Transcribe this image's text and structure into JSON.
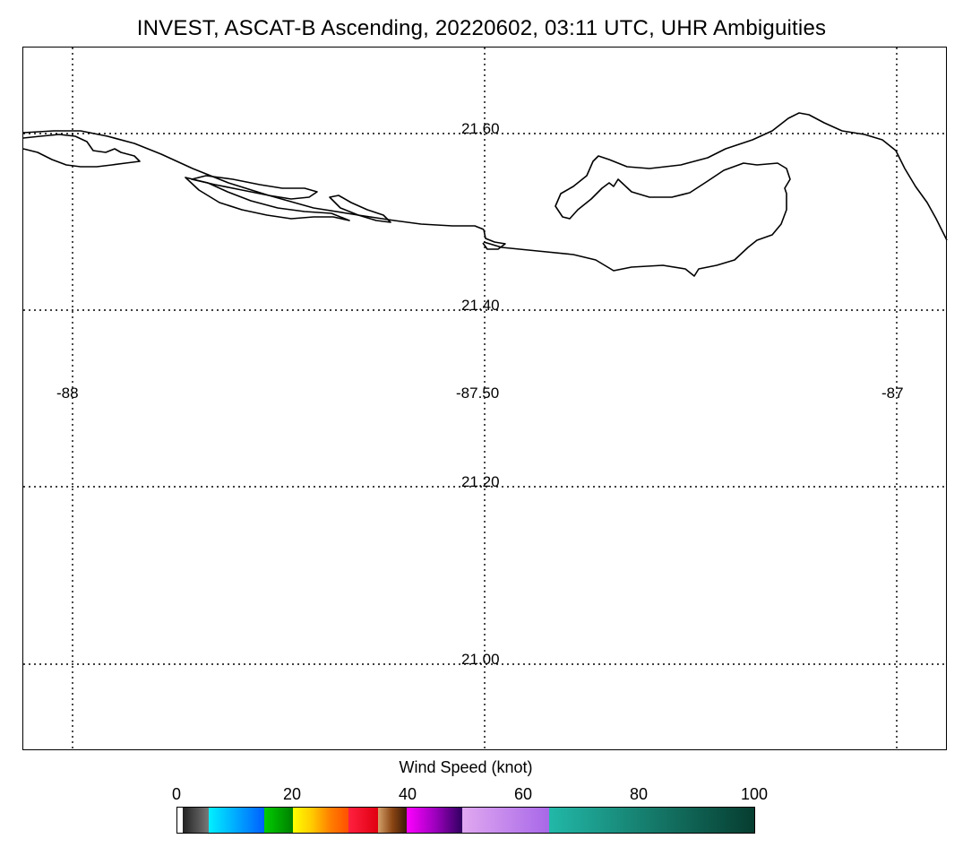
{
  "title": "INVEST, ASCAT-B Ascending, 20220602, 03:11 UTC, UHR Ambiguities",
  "map": {
    "lat_labels": [
      "21.60",
      "21.40",
      "21.20",
      "21.00"
    ],
    "lon_labels": [
      "-88",
      "-87.50",
      "-87"
    ],
    "lat_range": [
      20.9,
      21.7
    ],
    "lon_range": [
      -88.06,
      -86.94
    ],
    "grid": "dotted",
    "coastline": "Yucatan north coast"
  },
  "colorbar": {
    "title": "Wind Speed (knot)",
    "ticks": [
      "0",
      "20",
      "40",
      "60",
      "80",
      "100"
    ],
    "range": [
      0,
      100
    ],
    "colors": {
      "c1": "#3a3a3a",
      "c2": "#00e5ff",
      "c3": "#007bff",
      "c4": "#00aa00",
      "c5": "#ffe600",
      "c6": "#ff8c00",
      "c7": "#e8001c",
      "c8": "#8b4513",
      "c9": "#e000e0",
      "c10": "#4b0082",
      "c11": "#d7a0f0",
      "c12": "#a66ce6",
      "c13": "#20b2a0",
      "c14": "#064e3b"
    }
  }
}
